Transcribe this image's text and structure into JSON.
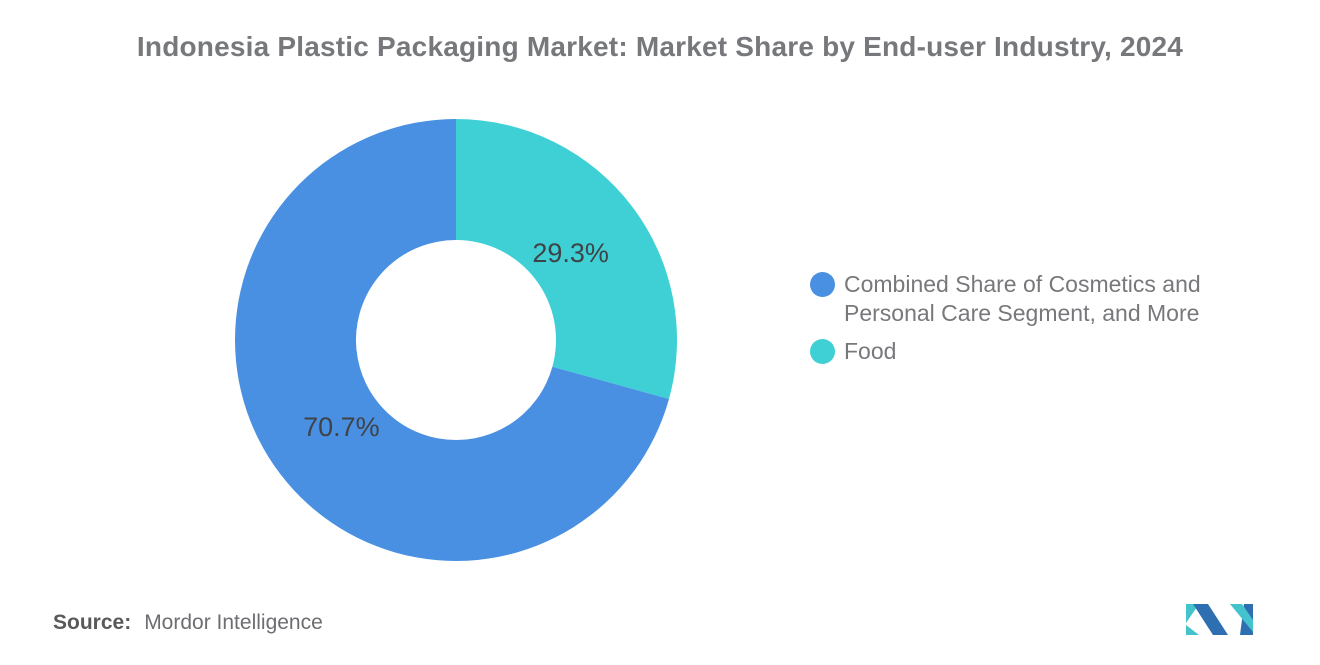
{
  "title": "Indonesia Plastic Packaging Market: Market Share by End-user Industry, 2024",
  "source": {
    "label": "Source:",
    "value": "Mordor Intelligence"
  },
  "logo": {
    "name": "mordor-intelligence-logo",
    "blue": "#2E6FB2",
    "teal": "#44C3CD"
  },
  "chart_data": {
    "type": "pie",
    "subtype": "donut",
    "title": "Indonesia Plastic Packaging Market: Market Share by End-user Industry, 2024",
    "start_angle_deg": 0,
    "direction": "clockwise",
    "inner_radius_ratio": 0.45,
    "label_color": "#3F4347",
    "background": "#FFFFFF",
    "segments": [
      {
        "id": "food",
        "label": "Food",
        "value": 29.3,
        "display": "29.3%",
        "color": "#3FD0D5"
      },
      {
        "id": "combined",
        "label": "Combined Share of Cosmetics and Personal Care Segment, and More",
        "value": 70.7,
        "display": "70.7%",
        "color": "#4A90E2"
      }
    ],
    "legend_position": "right",
    "legend": [
      {
        "id": "combined",
        "label": "Combined Share of Cosmetics and Personal Care Segment, and More",
        "color": "#4A90E2"
      },
      {
        "id": "food",
        "label": "Food",
        "color": "#3FD0D5"
      }
    ]
  }
}
